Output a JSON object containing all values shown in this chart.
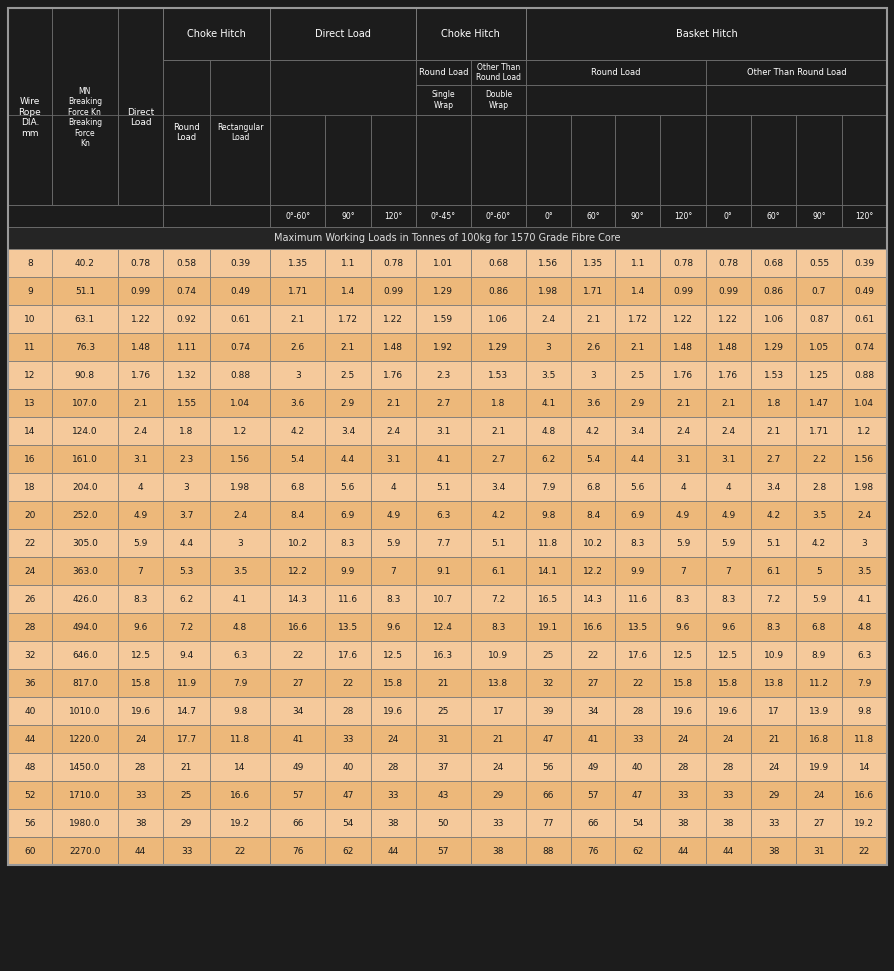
{
  "subtitle": "Maximum Working Loads in Tonnes of 100kg for 1570 Grade Fibre Core",
  "header_bg": "#1c1c1c",
  "header_text_color": "#ffffff",
  "subtitle_bg": "#2a2a2a",
  "data_row_colors": [
    "#f5c99b",
    "#edb87a"
  ],
  "data_text_color": "#1a1a1a",
  "border_color": "#888888",
  "grid_color": "#777777",
  "angle_headers": [
    "0°-60°",
    "90°",
    "120°",
    "0°-45°",
    "0°-60°",
    "0°-45°",
    "0°-60°",
    "0°",
    "60°",
    "90°",
    "120°",
    "0°",
    "60°",
    "90°",
    "120°"
  ],
  "rows": [
    [
      8,
      40.2,
      0.78,
      0.58,
      0.39,
      1.35,
      1.1,
      0.78,
      1.01,
      0.68,
      1.56,
      1.35,
      1.1,
      0.78,
      0.78,
      0.68,
      0.55,
      0.39
    ],
    [
      9,
      51.1,
      0.99,
      0.74,
      0.49,
      1.71,
      1.4,
      0.99,
      1.29,
      0.86,
      1.98,
      1.71,
      1.4,
      0.99,
      0.99,
      0.86,
      0.7,
      0.49
    ],
    [
      10,
      63.1,
      1.22,
      0.92,
      0.61,
      2.1,
      1.72,
      1.22,
      1.59,
      1.06,
      2.4,
      2.1,
      1.72,
      1.22,
      1.22,
      1.06,
      0.87,
      0.61
    ],
    [
      11,
      76.3,
      1.48,
      1.11,
      0.74,
      2.6,
      2.1,
      1.48,
      1.92,
      1.29,
      3,
      2.6,
      2.1,
      1.48,
      1.48,
      1.29,
      1.05,
      0.74
    ],
    [
      12,
      90.8,
      1.76,
      1.32,
      0.88,
      3,
      2.5,
      1.76,
      2.3,
      1.53,
      3.5,
      3,
      2.5,
      1.76,
      1.76,
      1.53,
      1.25,
      0.88
    ],
    [
      13,
      107.0,
      2.1,
      1.55,
      1.04,
      3.6,
      2.9,
      2.1,
      2.7,
      1.8,
      4.1,
      3.6,
      2.9,
      2.1,
      2.1,
      1.8,
      1.47,
      1.04
    ],
    [
      14,
      124.0,
      2.4,
      1.8,
      1.2,
      4.2,
      3.4,
      2.4,
      3.1,
      2.1,
      4.8,
      4.2,
      3.4,
      2.4,
      2.4,
      2.1,
      1.71,
      1.2
    ],
    [
      16,
      161.0,
      3.1,
      2.3,
      1.56,
      5.4,
      4.4,
      3.1,
      4.1,
      2.7,
      6.2,
      5.4,
      4.4,
      3.1,
      3.1,
      2.7,
      2.2,
      1.56
    ],
    [
      18,
      204.0,
      4,
      3,
      1.98,
      6.8,
      5.6,
      4,
      5.1,
      3.4,
      7.9,
      6.8,
      5.6,
      4,
      4,
      3.4,
      2.8,
      1.98
    ],
    [
      20,
      252.0,
      4.9,
      3.7,
      2.4,
      8.4,
      6.9,
      4.9,
      6.3,
      4.2,
      9.8,
      8.4,
      6.9,
      4.9,
      4.9,
      4.2,
      3.5,
      2.4
    ],
    [
      22,
      305.0,
      5.9,
      4.4,
      3,
      10.2,
      8.3,
      5.9,
      7.7,
      5.1,
      11.8,
      10.2,
      8.3,
      5.9,
      5.9,
      5.1,
      4.2,
      3
    ],
    [
      24,
      363.0,
      7,
      5.3,
      3.5,
      12.2,
      9.9,
      7,
      9.1,
      6.1,
      14.1,
      12.2,
      9.9,
      7,
      7,
      6.1,
      5,
      3.5
    ],
    [
      26,
      426.0,
      8.3,
      6.2,
      4.1,
      14.3,
      11.6,
      8.3,
      10.7,
      7.2,
      16.5,
      14.3,
      11.6,
      8.3,
      8.3,
      7.2,
      5.9,
      4.1
    ],
    [
      28,
      494.0,
      9.6,
      7.2,
      4.8,
      16.6,
      13.5,
      9.6,
      12.4,
      8.3,
      19.1,
      16.6,
      13.5,
      9.6,
      9.6,
      8.3,
      6.8,
      4.8
    ],
    [
      32,
      646.0,
      12.5,
      9.4,
      6.3,
      22,
      17.6,
      12.5,
      16.3,
      10.9,
      25,
      22,
      17.6,
      12.5,
      12.5,
      10.9,
      8.9,
      6.3
    ],
    [
      36,
      817.0,
      15.8,
      11.9,
      7.9,
      27,
      22,
      15.8,
      21,
      13.8,
      32,
      27,
      22,
      15.8,
      15.8,
      13.8,
      11.2,
      7.9
    ],
    [
      40,
      1010.0,
      19.6,
      14.7,
      9.8,
      34,
      28,
      19.6,
      25,
      17,
      39,
      34,
      28,
      19.6,
      19.6,
      17,
      13.9,
      9.8
    ],
    [
      44,
      1220.0,
      24,
      17.7,
      11.8,
      41,
      33,
      24,
      31,
      21,
      47,
      41,
      33,
      24,
      24,
      21,
      16.8,
      11.8
    ],
    [
      48,
      1450.0,
      28,
      21,
      14,
      49,
      40,
      28,
      37,
      24,
      56,
      49,
      40,
      28,
      28,
      24,
      19.9,
      14
    ],
    [
      52,
      1710.0,
      33,
      25,
      16.6,
      57,
      47,
      33,
      43,
      29,
      66,
      57,
      47,
      33,
      33,
      29,
      24,
      16.6
    ],
    [
      56,
      1980.0,
      38,
      29,
      19.2,
      66,
      54,
      38,
      50,
      33,
      77,
      66,
      54,
      38,
      38,
      33,
      27,
      19.2
    ],
    [
      60,
      2270.0,
      44,
      33,
      22,
      76,
      62,
      44,
      57,
      38,
      88,
      76,
      62,
      44,
      44,
      38,
      31,
      22
    ]
  ]
}
